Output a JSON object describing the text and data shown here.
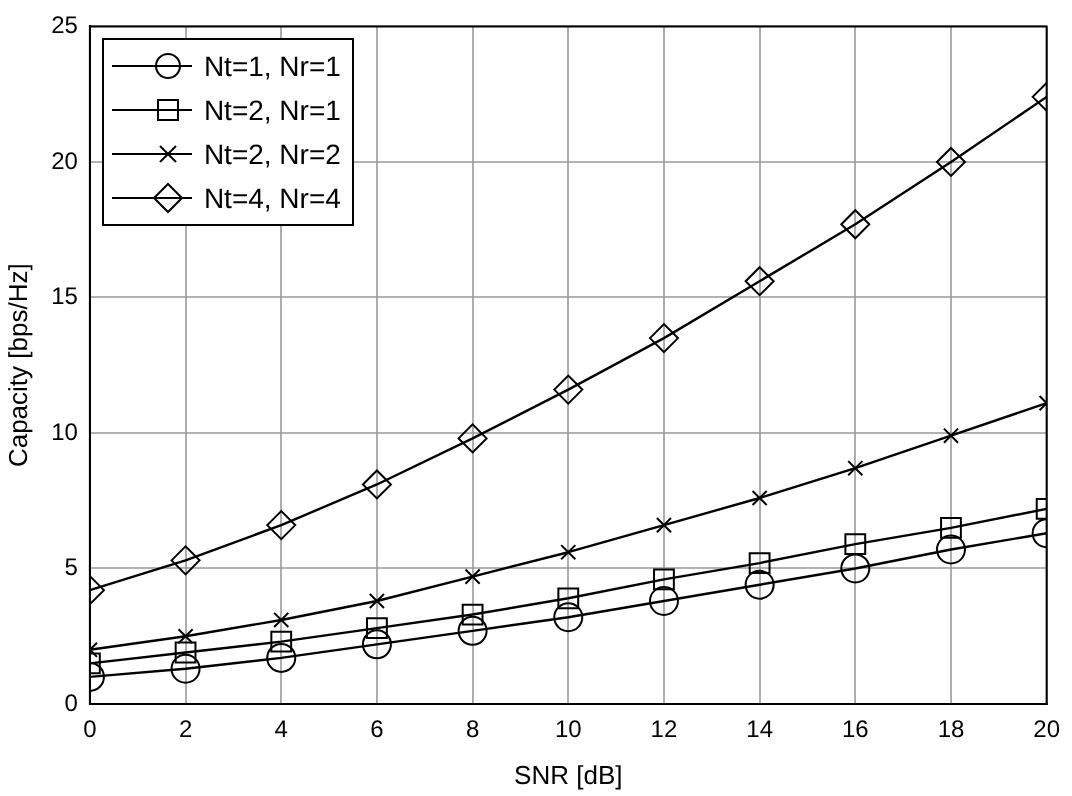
{
  "chart_data": {
    "type": "line",
    "xlabel": "SNR [dB]",
    "ylabel": "Capacity [bps/Hz]",
    "x": [
      0,
      2,
      4,
      6,
      8,
      10,
      12,
      14,
      16,
      18,
      20
    ],
    "series": [
      {
        "name": "Nt=1, Nr=1",
        "color": "#000000",
        "marker": "circle",
        "values": [
          1.0,
          1.3,
          1.7,
          2.2,
          2.7,
          3.2,
          3.8,
          4.4,
          5.0,
          5.7,
          6.3
        ]
      },
      {
        "name": "Nt=2, Nr=1",
        "color": "#000000",
        "marker": "square",
        "values": [
          1.5,
          1.9,
          2.3,
          2.8,
          3.3,
          3.9,
          4.6,
          5.2,
          5.9,
          6.5,
          7.2
        ]
      },
      {
        "name": "Nt=2, Nr=2",
        "color": "#000000",
        "marker": "cross",
        "values": [
          2.0,
          2.5,
          3.1,
          3.8,
          4.7,
          5.6,
          6.6,
          7.6,
          8.7,
          9.9,
          11.1
        ]
      },
      {
        "name": "Nt=4, Nr=4",
        "color": "#000000",
        "marker": "diamond",
        "values": [
          4.2,
          5.3,
          6.6,
          8.1,
          9.8,
          11.6,
          13.5,
          15.6,
          17.7,
          20.0,
          22.4
        ]
      }
    ],
    "xlim": [
      0,
      20
    ],
    "xticks": [
      0,
      2,
      4,
      6,
      8,
      10,
      12,
      14,
      16,
      18,
      20
    ],
    "ylim": [
      0,
      25
    ],
    "yticks": [
      0,
      5,
      10,
      15,
      20,
      25
    ],
    "grid": true,
    "legend": "top left",
    "line_style": "solid"
  }
}
